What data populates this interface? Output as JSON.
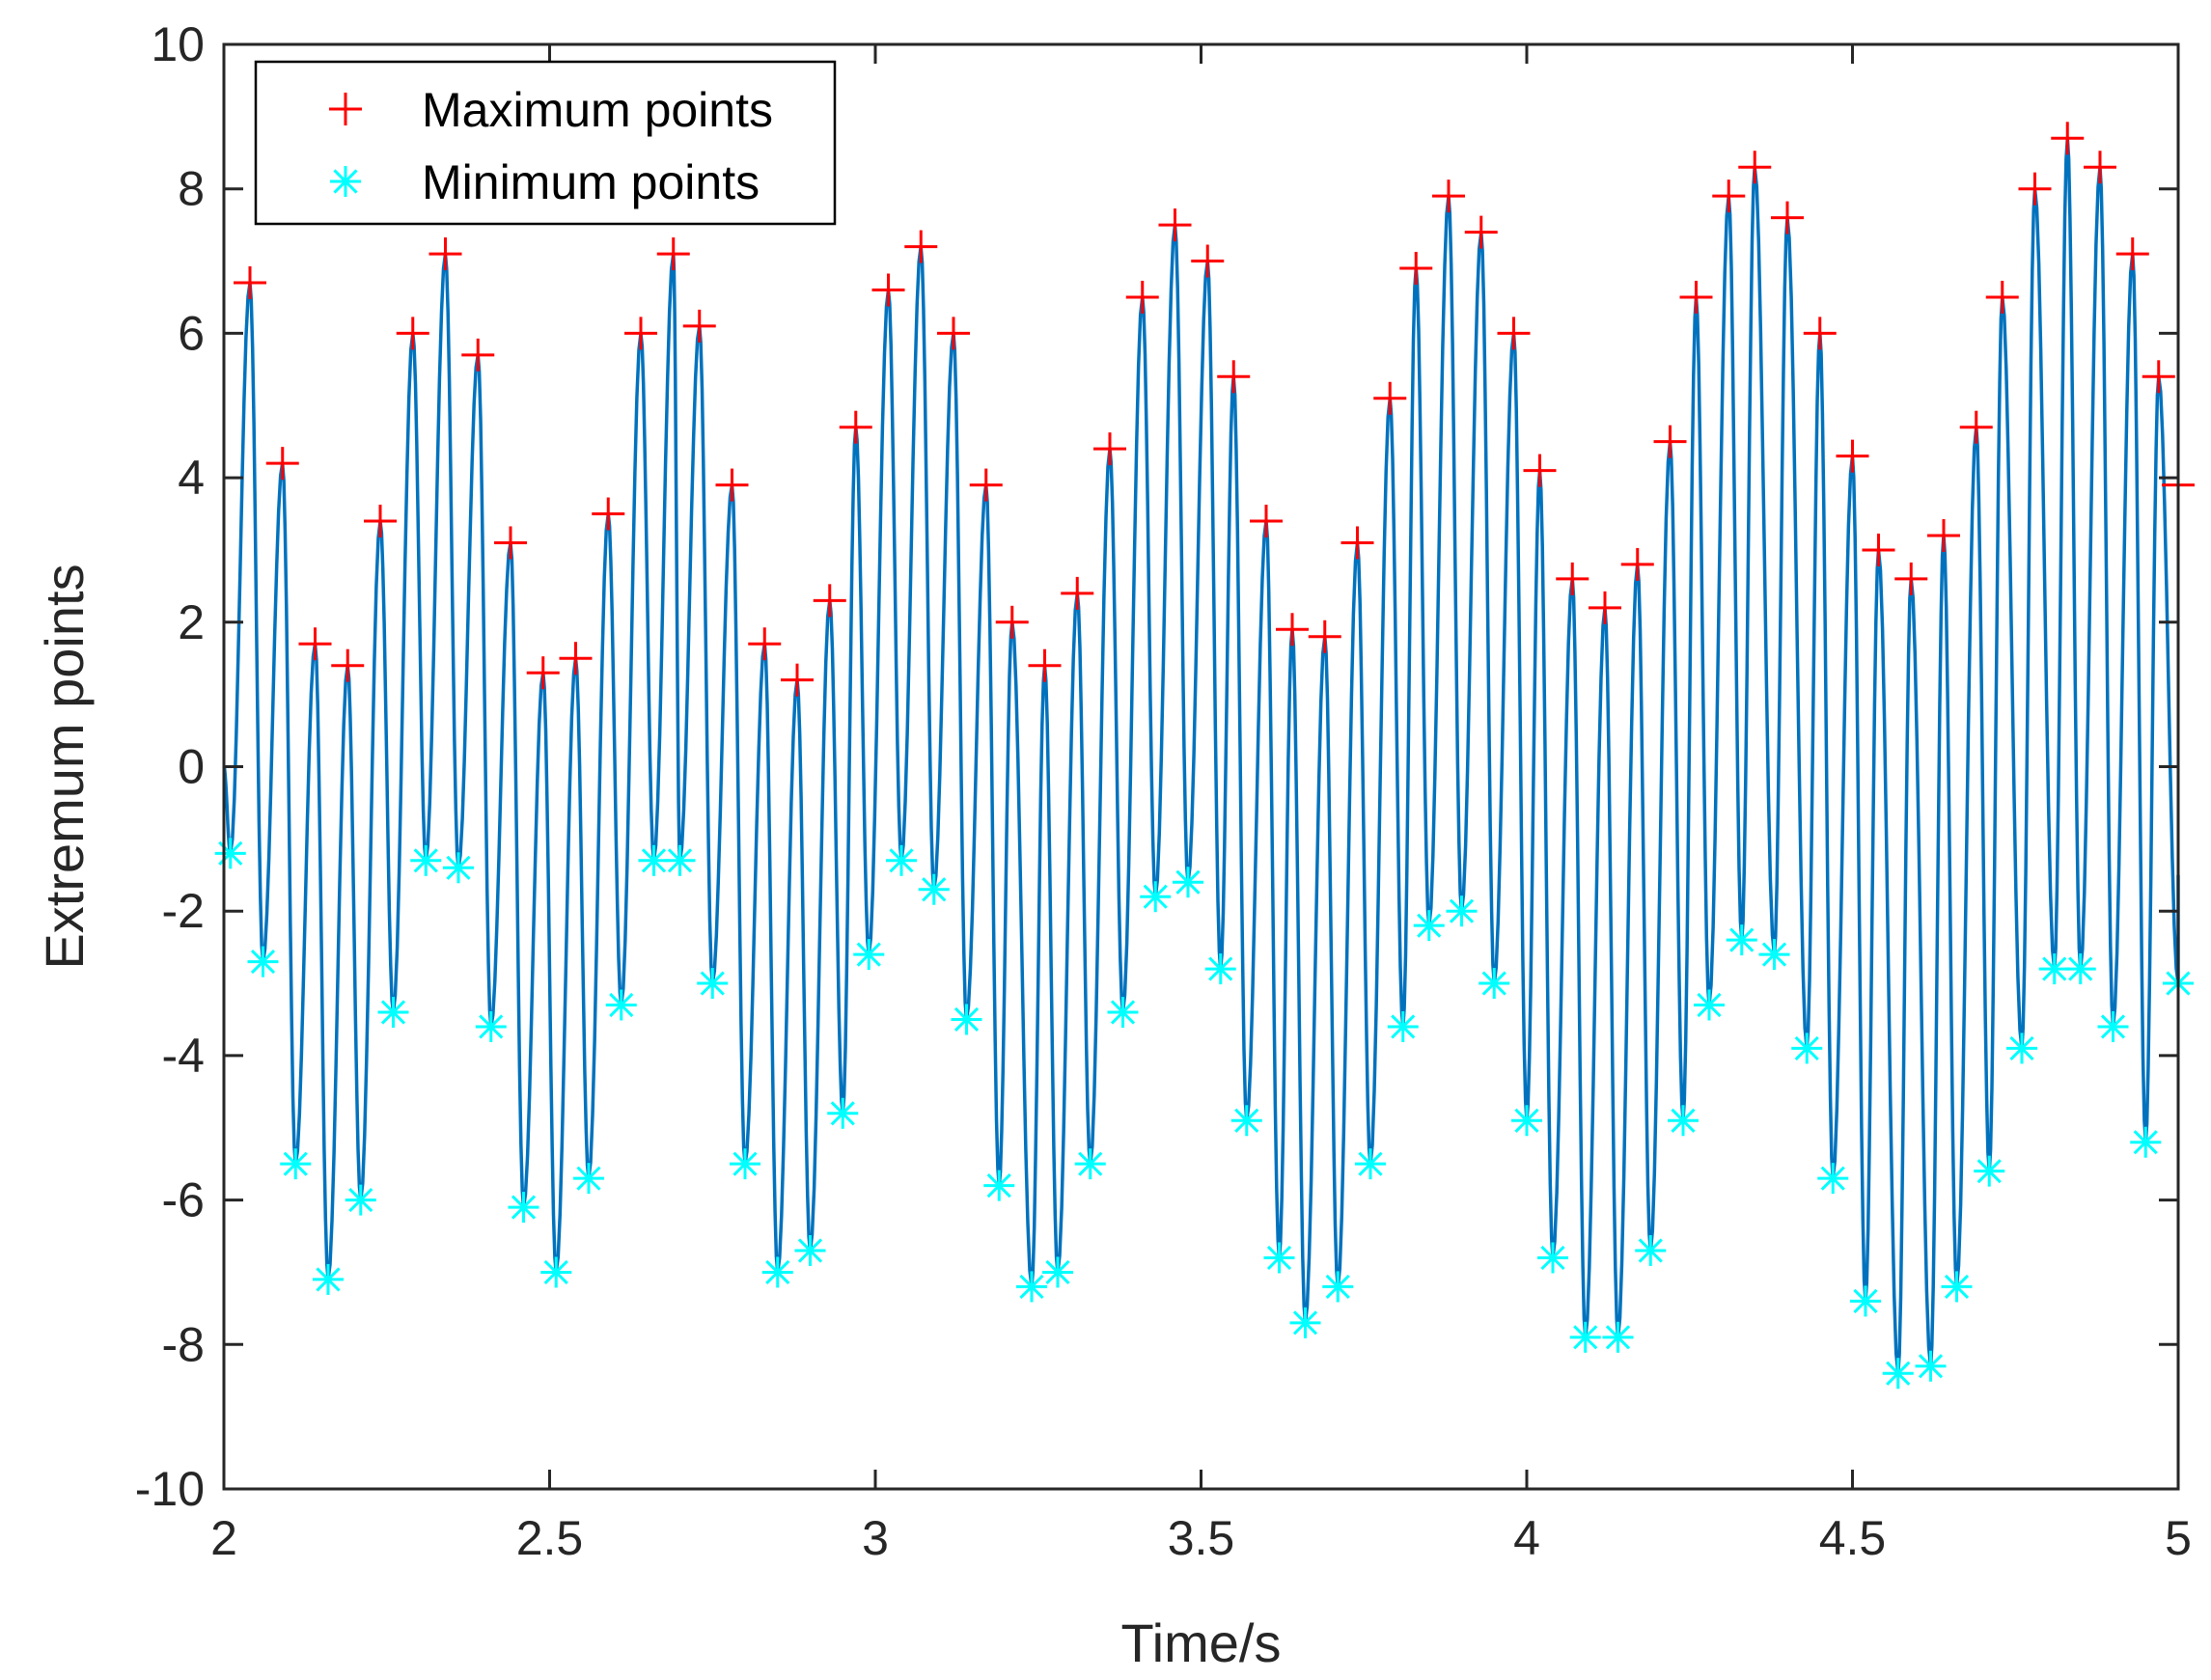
{
  "chart_data": {
    "type": "line",
    "title": "",
    "xlabel": "Time/s",
    "ylabel": "Extremum points",
    "xlim": [
      2,
      5
    ],
    "ylim": [
      -10,
      10
    ],
    "xticks": [
      2,
      2.5,
      3,
      3.5,
      4,
      4.5,
      5
    ],
    "xtick_labels": [
      "2",
      "2.5",
      "3",
      "3.5",
      "4",
      "4.5",
      "5"
    ],
    "yticks": [
      -10,
      -8,
      -6,
      -4,
      -2,
      0,
      2,
      4,
      6,
      8,
      10
    ],
    "ytick_labels": [
      "-10",
      "-8",
      "-6",
      "-4",
      "-2",
      "0",
      "2",
      "4",
      "6",
      "8",
      "10"
    ],
    "grid": false,
    "legend_position": "top-left",
    "series": [
      {
        "name": "Signal",
        "kind": "line",
        "color": "#0072BD",
        "in_legend": false,
        "note": "continuous oscillating signal passing through the alternating maximum and minimum points"
      },
      {
        "name": "Maximum points",
        "kind": "marker",
        "marker": "plus",
        "color": "#FF0000",
        "x": [
          2.04,
          2.09,
          2.14,
          2.19,
          2.24,
          2.29,
          2.34,
          2.39,
          2.44,
          2.49,
          2.54,
          2.59,
          2.64,
          2.69,
          2.73,
          2.78,
          2.83,
          2.88,
          2.93,
          2.97,
          3.02,
          3.07,
          3.12,
          3.17,
          3.21,
          3.26,
          3.31,
          3.36,
          3.41,
          3.46,
          3.51,
          3.55,
          3.6,
          3.64,
          3.69,
          3.74,
          3.79,
          3.83,
          3.88,
          3.93,
          3.98,
          4.02,
          4.07,
          4.12,
          4.17,
          4.22,
          4.26,
          4.31,
          4.35,
          4.4,
          4.45,
          4.5,
          4.54,
          4.59,
          4.64,
          4.69,
          4.73,
          4.78,
          4.83,
          4.88,
          4.93,
          4.97,
          5.0
        ],
        "y": [
          6.7,
          4.2,
          1.7,
          1.4,
          3.4,
          6.0,
          7.1,
          5.7,
          3.1,
          1.3,
          1.5,
          3.5,
          6.0,
          7.1,
          6.1,
          3.9,
          1.7,
          1.2,
          2.3,
          4.7,
          6.6,
          7.2,
          6.0,
          3.9,
          2.0,
          1.4,
          2.4,
          4.4,
          6.5,
          7.5,
          7.0,
          5.4,
          3.4,
          1.9,
          1.8,
          3.1,
          5.1,
          6.9,
          7.9,
          7.4,
          6.0,
          4.1,
          2.6,
          2.2,
          2.8,
          4.5,
          6.5,
          7.9,
          8.3,
          7.6,
          6.0,
          4.3,
          3.0,
          2.6,
          3.2,
          4.7,
          6.5,
          8.0,
          8.7,
          8.3,
          7.1,
          5.4,
          3.9
        ],
        "note": "approximate values read from the plot; total visible markers ~76"
      },
      {
        "name": "Minimum points",
        "kind": "marker",
        "marker": "asterisk",
        "color": "#00FFFF",
        "x": [
          2.01,
          2.06,
          2.11,
          2.16,
          2.21,
          2.26,
          2.31,
          2.36,
          2.41,
          2.46,
          2.51,
          2.56,
          2.61,
          2.66,
          2.7,
          2.75,
          2.8,
          2.85,
          2.9,
          2.95,
          2.99,
          3.04,
          3.09,
          3.14,
          3.19,
          3.24,
          3.28,
          3.33,
          3.38,
          3.43,
          3.48,
          3.53,
          3.57,
          3.62,
          3.66,
          3.71,
          3.76,
          3.81,
          3.85,
          3.9,
          3.95,
          4.0,
          4.04,
          4.09,
          4.14,
          4.19,
          4.24,
          4.28,
          4.33,
          4.38,
          4.43,
          4.47,
          4.52,
          4.57,
          4.62,
          4.66,
          4.71,
          4.76,
          4.81,
          4.85,
          4.9,
          4.95,
          5.0
        ],
        "y": [
          -1.2,
          -2.7,
          -5.5,
          -7.1,
          -6.0,
          -3.4,
          -1.3,
          -1.4,
          -3.6,
          -6.1,
          -7.0,
          -5.7,
          -3.3,
          -1.3,
          -1.3,
          -3.0,
          -5.5,
          -7.0,
          -6.7,
          -4.8,
          -2.6,
          -1.3,
          -1.7,
          -3.5,
          -5.8,
          -7.2,
          -7.0,
          -5.5,
          -3.4,
          -1.8,
          -1.6,
          -2.8,
          -4.9,
          -6.8,
          -7.7,
          -7.2,
          -5.5,
          -3.6,
          -2.2,
          -2.0,
          -3.0,
          -4.9,
          -6.8,
          -7.9,
          -7.9,
          -6.7,
          -4.9,
          -3.3,
          -2.4,
          -2.6,
          -3.9,
          -5.7,
          -7.4,
          -8.4,
          -8.3,
          -7.2,
          -5.6,
          -3.9,
          -2.8,
          -2.8,
          -3.6,
          -5.2,
          -3.0
        ],
        "note": "approximate values read from the plot"
      }
    ]
  }
}
